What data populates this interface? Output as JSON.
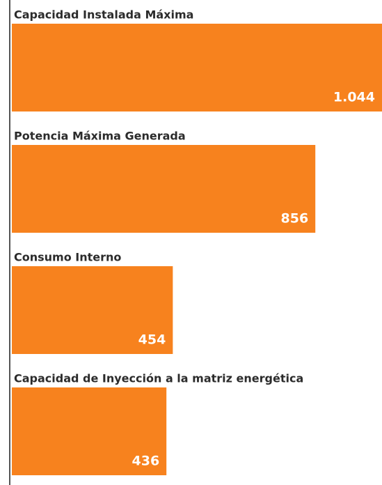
{
  "chart_data": {
    "type": "hbar",
    "categories": [
      "Capacidad Instalada Máxima",
      "Potencia Máxima Generada",
      "Consumo Interno",
      "Capacidad de Inyección a la matriz energética"
    ],
    "values": [
      1044,
      856,
      454,
      436
    ],
    "value_labels": [
      "1.044",
      "856",
      "454",
      "436"
    ],
    "color": "#f7821e",
    "xlim": [
      0,
      1044
    ]
  }
}
